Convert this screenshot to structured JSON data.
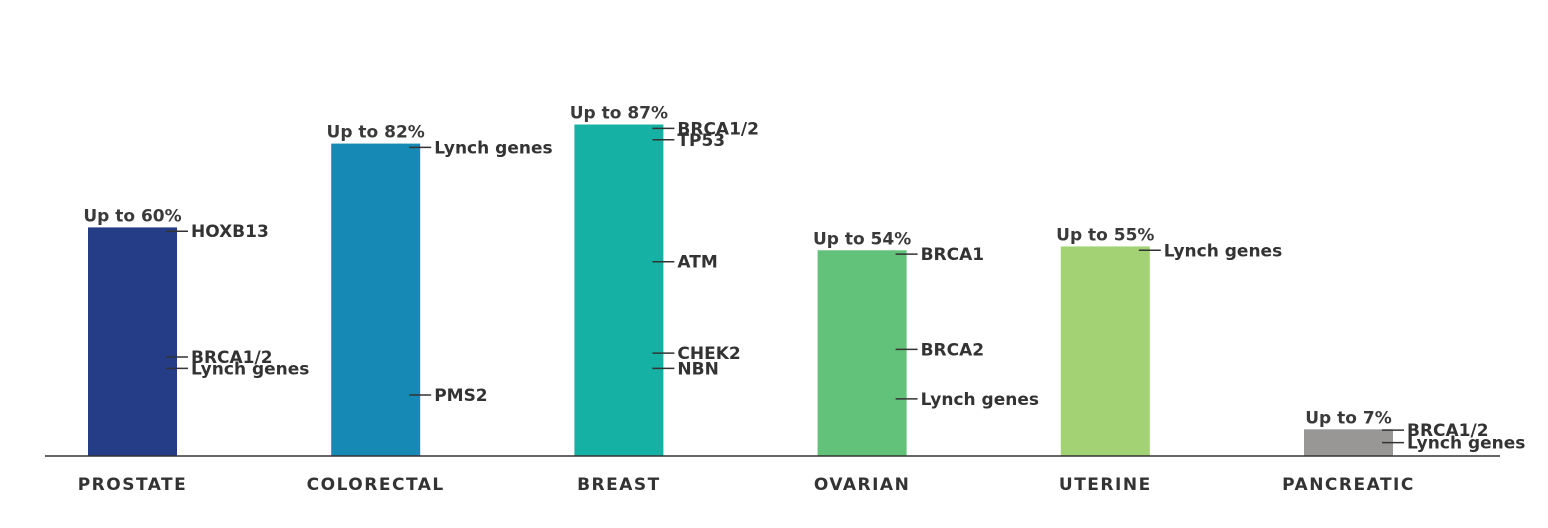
{
  "chart_data": {
    "type": "bar",
    "title": "",
    "xlabel": "",
    "ylabel": "",
    "ylim": [
      0,
      100
    ],
    "categories": [
      "PROSTATE",
      "COLORECTAL",
      "BREAST",
      "OVARIAN",
      "UTERINE",
      "PANCREATIC"
    ],
    "values": [
      60,
      82,
      87,
      54,
      55,
      7
    ],
    "value_labels": [
      "Up to 60%",
      "Up to 82%",
      "Up to 87%",
      "Up to 54%",
      "Up to 55%",
      "Up to 7%"
    ],
    "colors": [
      "#253c87",
      "#1689b5",
      "#15b1a4",
      "#63c27a",
      "#a3d274",
      "#999696"
    ],
    "gene_annotations": [
      [
        {
          "label": "HOXB13",
          "value": 59
        },
        {
          "label": "BRCA1/2",
          "value": 26
        },
        {
          "label": "Lynch genes",
          "value": 23
        }
      ],
      [
        {
          "label": "Lynch genes",
          "value": 81
        },
        {
          "label": "PMS2",
          "value": 16
        }
      ],
      [
        {
          "label": "BRCA1/2",
          "value": 86
        },
        {
          "label": "TP53",
          "value": 83
        },
        {
          "label": "ATM",
          "value": 51
        },
        {
          "label": "CHEK2",
          "value": 27
        },
        {
          "label": "NBN",
          "value": 23
        }
      ],
      [
        {
          "label": "BRCA1",
          "value": 53
        },
        {
          "label": "BRCA2",
          "value": 28
        },
        {
          "label": "Lynch genes",
          "value": 15
        }
      ],
      [
        {
          "label": "Lynch genes",
          "value": 54
        }
      ],
      [
        {
          "label": "BRCA1/2",
          "value": 6.8
        },
        {
          "label": "Lynch genes",
          "value": 3.5
        }
      ]
    ],
    "grid": false,
    "legend": "none"
  }
}
